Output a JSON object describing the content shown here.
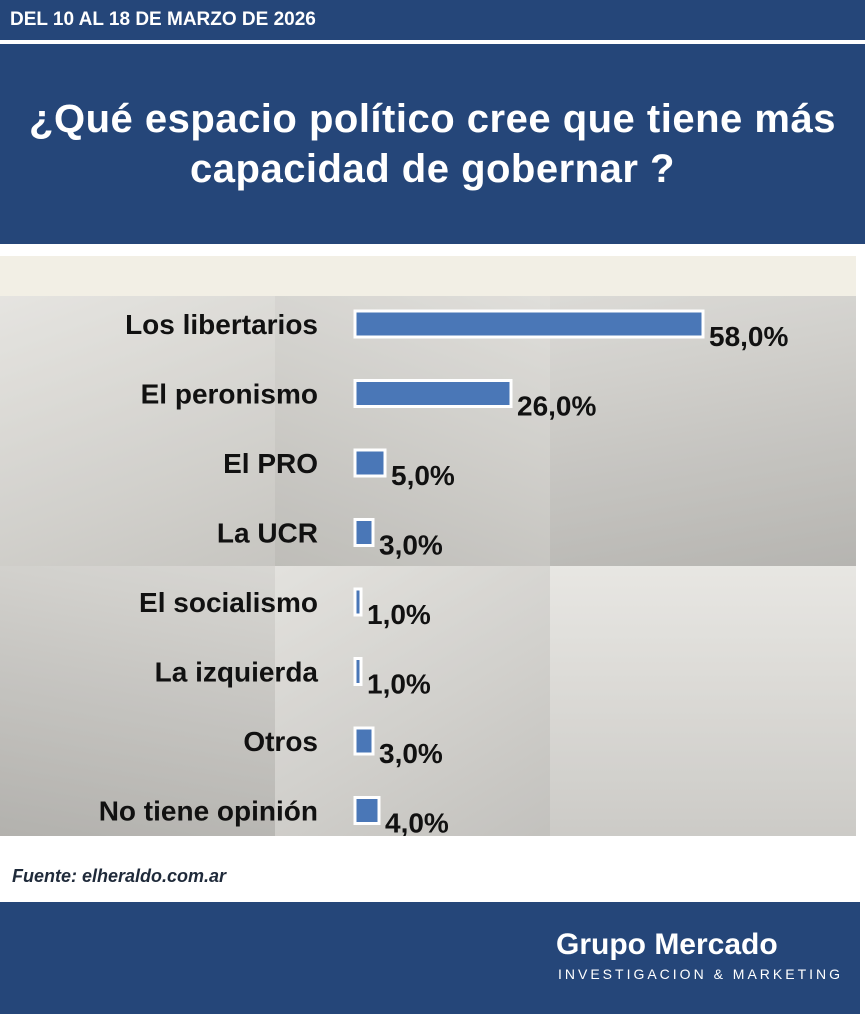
{
  "header": {
    "date_range": "DEL 10 AL 18 DE MARZO DE 2026",
    "title": "¿Qué espacio político cree que tiene más capacidad de gobernar ?"
  },
  "chart_data": {
    "type": "bar",
    "orientation": "horizontal",
    "categories": [
      "Los libertarios",
      "El peronismo",
      "El PRO",
      "La UCR",
      "El socialismo",
      "La izquierda",
      "Otros",
      "No tiene opinión"
    ],
    "values": [
      58.0,
      26.0,
      5.0,
      3.0,
      1.0,
      1.0,
      3.0,
      4.0
    ],
    "value_labels": [
      "58,0%",
      "26,0%",
      "5,0%",
      "3,0%",
      "1,0%",
      "1,0%",
      "3,0%",
      "4,0%"
    ],
    "unit": "%",
    "bar_color": "#4a77b7",
    "grid": false
  },
  "source": "Fuente: elheraldo.com.ar",
  "footer": {
    "brand_name": "Grupo Mercado",
    "brand_tagline": "INVESTIGACION & MARKETING"
  },
  "colors": {
    "header_bg": "#254679",
    "chart_bg": "#ebe6d8"
  }
}
